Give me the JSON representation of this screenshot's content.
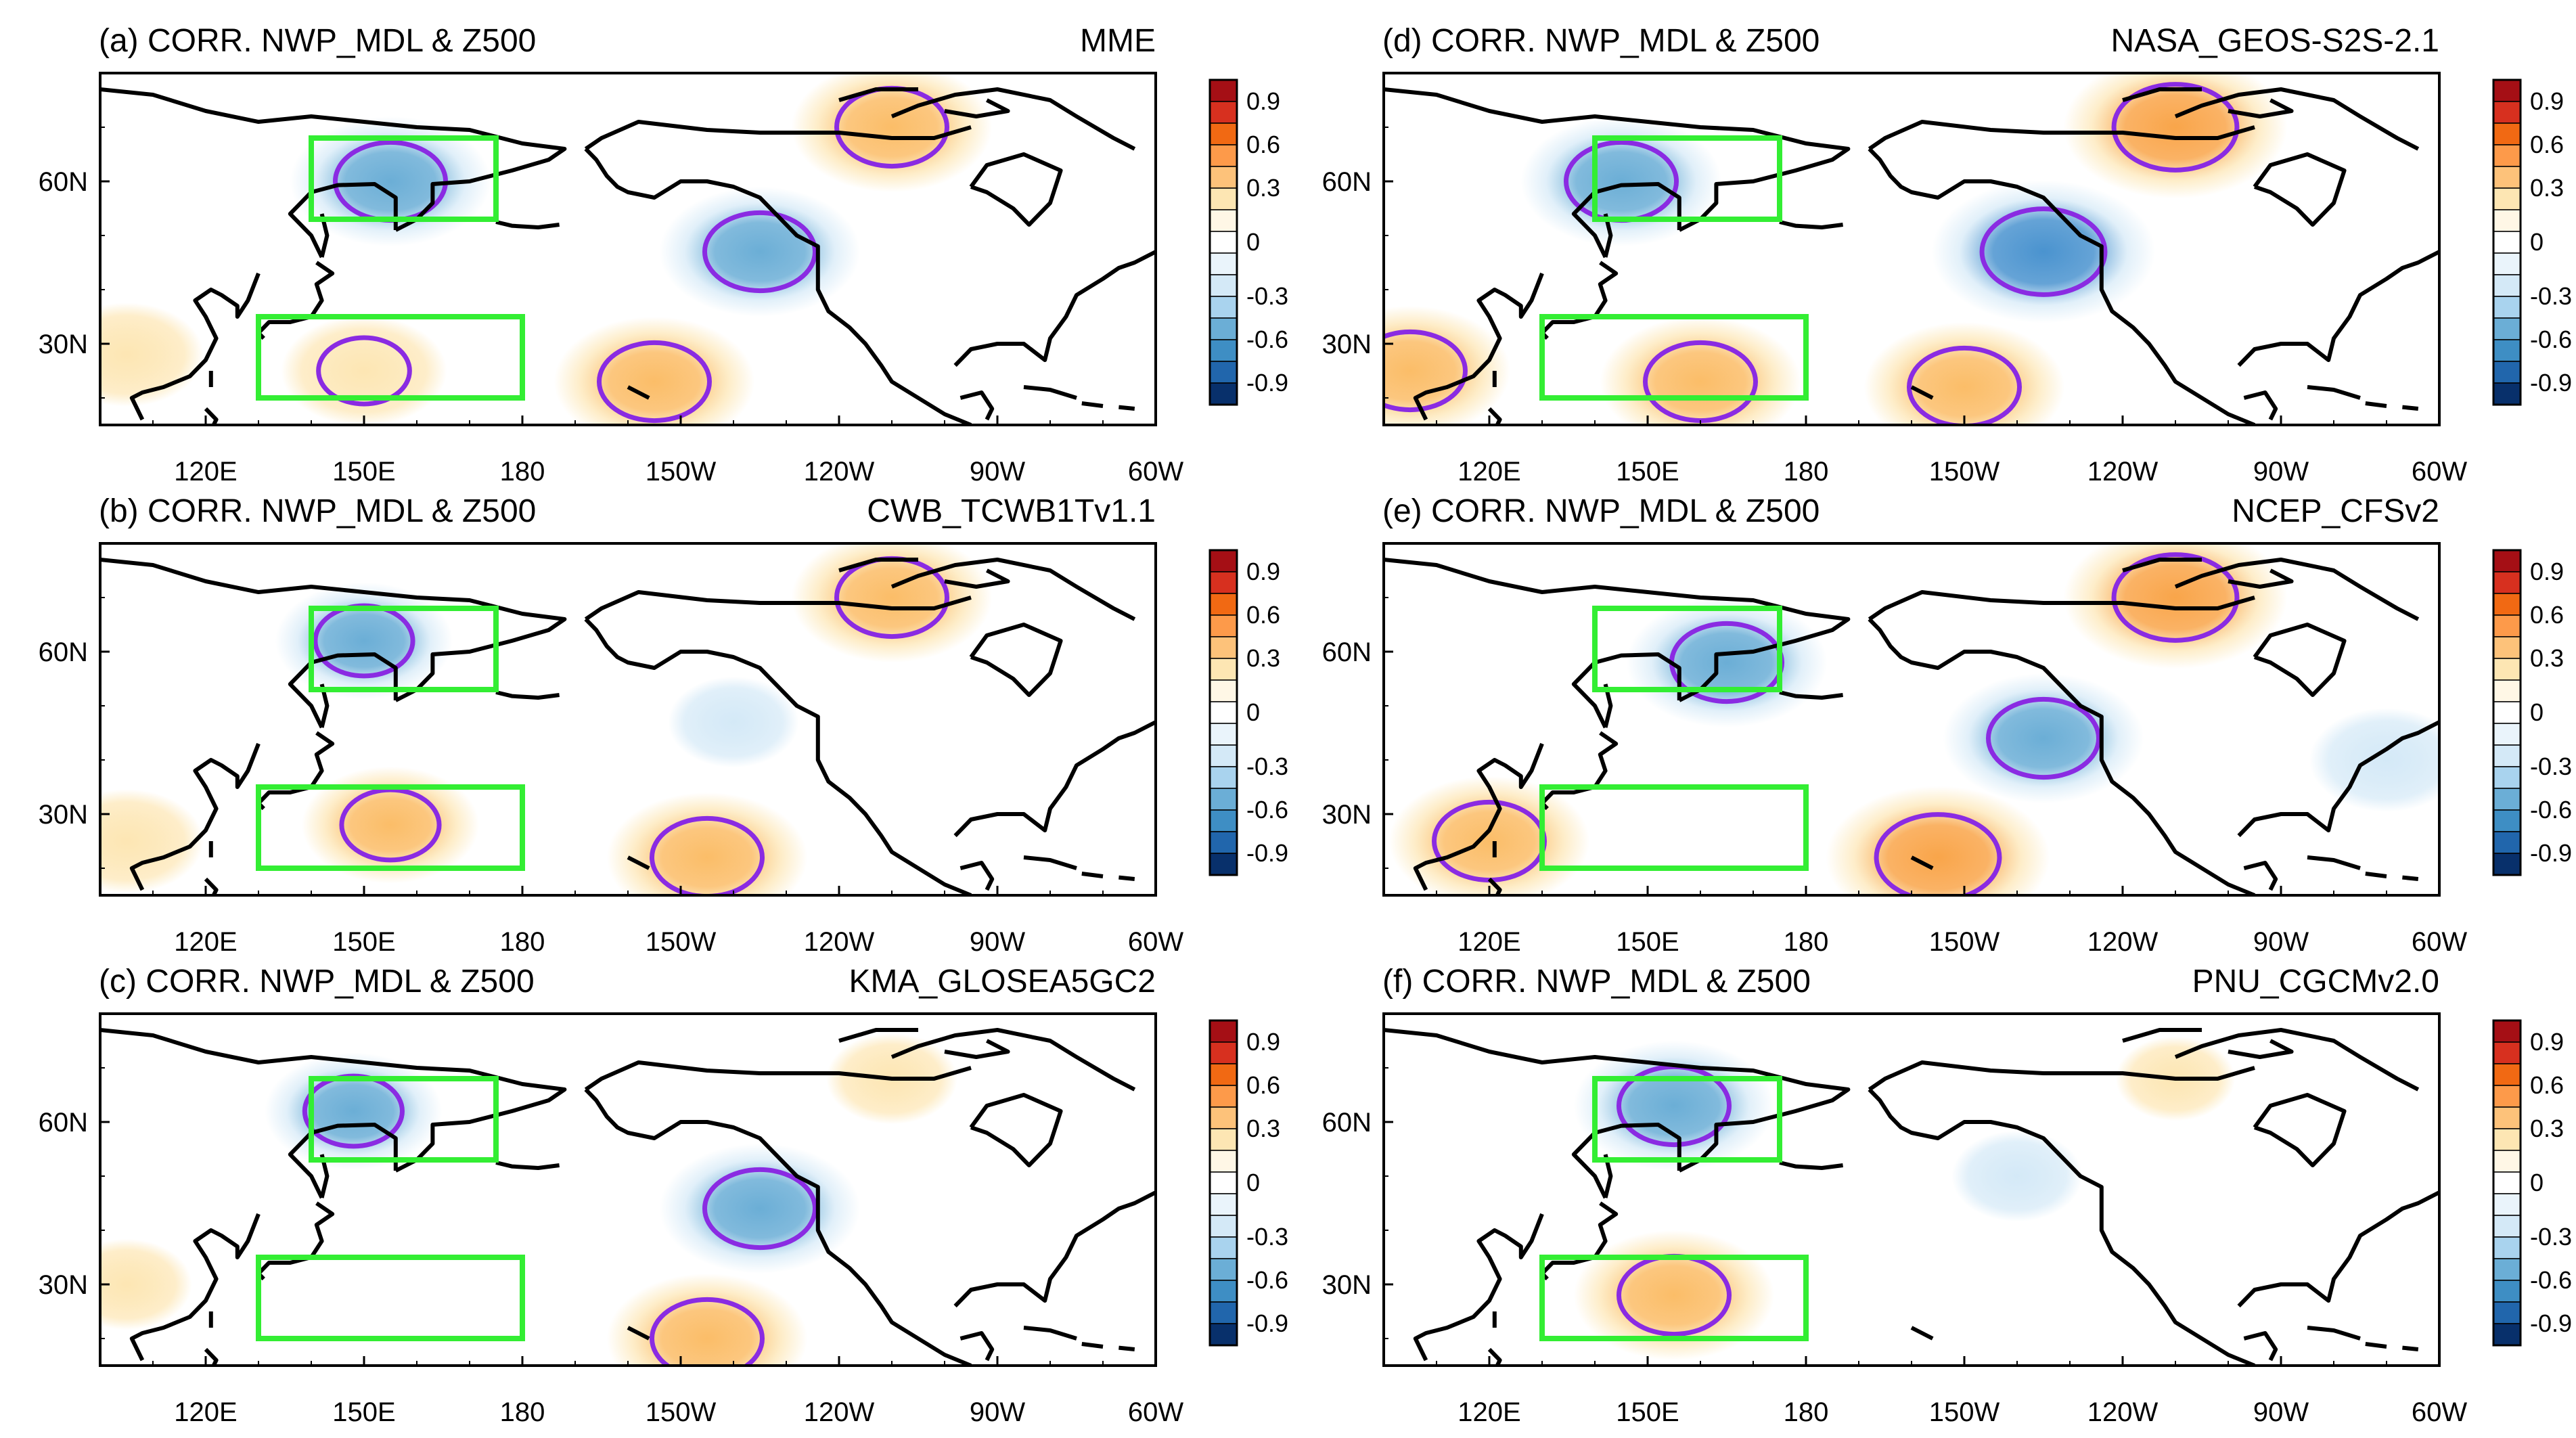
{
  "chart_data": [
    {
      "panel": "a",
      "type": "heatmap",
      "title": "(a) CORR. NWP_MDL & Z500",
      "model": "MME",
      "xticks": [
        "120E",
        "150E",
        "180",
        "150W",
        "120W",
        "90W",
        "60W"
      ],
      "yticks": [
        "30N",
        "60N"
      ],
      "colorbar_ticks": [
        "0.9",
        "0.6",
        "0.3",
        "0",
        "-0.3",
        "-0.6",
        "-0.9"
      ],
      "xlim_lon_east": [
        100,
        300
      ],
      "ylim_lat": [
        15,
        80
      ],
      "boxes": [
        {
          "lon": [
            140,
            175
          ],
          "lat": [
            53,
            68
          ]
        },
        {
          "lon": [
            130,
            180
          ],
          "lat": [
            20,
            35
          ]
        }
      ],
      "field": [
        {
          "lon": 155,
          "lat": 60,
          "value": -0.5
        },
        {
          "lon": 225,
          "lat": 47,
          "value": -0.5
        },
        {
          "lon": 250,
          "lat": 70,
          "value": 0.5
        },
        {
          "lon": 205,
          "lat": 23,
          "value": 0.5
        },
        {
          "lon": 150,
          "lat": 25,
          "value": 0.35
        },
        {
          "lon": 105,
          "lat": 28,
          "value": 0.3
        }
      ]
    },
    {
      "panel": "b",
      "type": "heatmap",
      "title": "(b) CORR. NWP_MDL & Z500",
      "model": "CWB_TCWB1Tv1.1",
      "xticks": [
        "120E",
        "150E",
        "180",
        "150W",
        "120W",
        "90W",
        "60W"
      ],
      "yticks": [
        "30N",
        "60N"
      ],
      "colorbar_ticks": [
        "0.9",
        "0.6",
        "0.3",
        "0",
        "-0.3",
        "-0.6",
        "-0.9"
      ],
      "xlim_lon_east": [
        100,
        300
      ],
      "ylim_lat": [
        15,
        80
      ],
      "boxes": [
        {
          "lon": [
            140,
            175
          ],
          "lat": [
            53,
            68
          ]
        },
        {
          "lon": [
            130,
            180
          ],
          "lat": [
            20,
            35
          ]
        }
      ],
      "field": [
        {
          "lon": 150,
          "lat": 62,
          "value": -0.4
        },
        {
          "lon": 220,
          "lat": 47,
          "value": -0.2
        },
        {
          "lon": 250,
          "lat": 70,
          "value": 0.5
        },
        {
          "lon": 215,
          "lat": 22,
          "value": 0.5
        },
        {
          "lon": 155,
          "lat": 28,
          "value": 0.4
        },
        {
          "lon": 105,
          "lat": 25,
          "value": 0.3
        }
      ]
    },
    {
      "panel": "c",
      "type": "heatmap",
      "title": "(c) CORR. NWP_MDL & Z500",
      "model": "KMA_GLOSEA5GC2",
      "xticks": [
        "120E",
        "150E",
        "180",
        "150W",
        "120W",
        "90W",
        "60W"
      ],
      "yticks": [
        "30N",
        "60N"
      ],
      "colorbar_ticks": [
        "0.9",
        "0.6",
        "0.3",
        "0",
        "-0.3",
        "-0.6",
        "-0.9"
      ],
      "xlim_lon_east": [
        100,
        300
      ],
      "ylim_lat": [
        15,
        80
      ],
      "boxes": [
        {
          "lon": [
            140,
            175
          ],
          "lat": [
            53,
            68
          ]
        },
        {
          "lon": [
            130,
            180
          ],
          "lat": [
            20,
            35
          ]
        }
      ],
      "field": [
        {
          "lon": 148,
          "lat": 62,
          "value": -0.4
        },
        {
          "lon": 225,
          "lat": 44,
          "value": -0.5
        },
        {
          "lon": 215,
          "lat": 20,
          "value": 0.5
        },
        {
          "lon": 250,
          "lat": 68,
          "value": 0.2
        },
        {
          "lon": 105,
          "lat": 30,
          "value": 0.2
        }
      ]
    },
    {
      "panel": "d",
      "type": "heatmap",
      "title": "(d) CORR. NWP_MDL & Z500",
      "model": "NASA_GEOS-S2S-2.1",
      "xticks": [
        "120E",
        "150E",
        "180",
        "150W",
        "120W",
        "90W",
        "60W"
      ],
      "yticks": [
        "30N",
        "60N"
      ],
      "colorbar_ticks": [
        "0.9",
        "0.6",
        "0.3",
        "0",
        "-0.3",
        "-0.6",
        "-0.9"
      ],
      "xlim_lon_east": [
        100,
        300
      ],
      "ylim_lat": [
        15,
        80
      ],
      "boxes": [
        {
          "lon": [
            140,
            175
          ],
          "lat": [
            53,
            68
          ]
        },
        {
          "lon": [
            130,
            180
          ],
          "lat": [
            20,
            35
          ]
        }
      ],
      "field": [
        {
          "lon": 145,
          "lat": 60,
          "value": -0.5
        },
        {
          "lon": 225,
          "lat": 47,
          "value": -0.6
        },
        {
          "lon": 250,
          "lat": 70,
          "value": 0.6
        },
        {
          "lon": 160,
          "lat": 23,
          "value": 0.5
        },
        {
          "lon": 210,
          "lat": 22,
          "value": 0.5
        },
        {
          "lon": 105,
          "lat": 25,
          "value": 0.5
        }
      ]
    },
    {
      "panel": "e",
      "type": "heatmap",
      "title": "(e) CORR. NWP_MDL & Z500",
      "model": "NCEP_CFSv2",
      "xticks": [
        "120E",
        "150E",
        "180",
        "150W",
        "120W",
        "90W",
        "60W"
      ],
      "yticks": [
        "30N",
        "60N"
      ],
      "colorbar_ticks": [
        "0.9",
        "0.6",
        "0.3",
        "0",
        "-0.3",
        "-0.6",
        "-0.9"
      ],
      "xlim_lon_east": [
        100,
        300
      ],
      "ylim_lat": [
        15,
        80
      ],
      "boxes": [
        {
          "lon": [
            140,
            175
          ],
          "lat": [
            53,
            68
          ]
        },
        {
          "lon": [
            130,
            180
          ],
          "lat": [
            20,
            35
          ]
        }
      ],
      "field": [
        {
          "lon": 165,
          "lat": 58,
          "value": -0.5
        },
        {
          "lon": 225,
          "lat": 44,
          "value": -0.5
        },
        {
          "lon": 250,
          "lat": 70,
          "value": 0.6
        },
        {
          "lon": 205,
          "lat": 22,
          "value": 0.6
        },
        {
          "lon": 120,
          "lat": 25,
          "value": 0.5
        },
        {
          "lon": 290,
          "lat": 40,
          "value": -0.3
        }
      ]
    },
    {
      "panel": "f",
      "type": "heatmap",
      "title": "(f) CORR. NWP_MDL & Z500",
      "model": "PNU_CGCMv2.0",
      "xticks": [
        "120E",
        "150E",
        "180",
        "150W",
        "120W",
        "90W",
        "60W"
      ],
      "yticks": [
        "30N",
        "60N"
      ],
      "colorbar_ticks": [
        "0.9",
        "0.6",
        "0.3",
        "0",
        "-0.3",
        "-0.6",
        "-0.9"
      ],
      "xlim_lon_east": [
        100,
        300
      ],
      "ylim_lat": [
        15,
        80
      ],
      "boxes": [
        {
          "lon": [
            140,
            175
          ],
          "lat": [
            53,
            68
          ]
        },
        {
          "lon": [
            130,
            180
          ],
          "lat": [
            20,
            35
          ]
        }
      ],
      "field": [
        {
          "lon": 155,
          "lat": 63,
          "value": -0.5
        },
        {
          "lon": 155,
          "lat": 28,
          "value": 0.5
        },
        {
          "lon": 220,
          "lat": 50,
          "value": -0.2
        },
        {
          "lon": 250,
          "lat": 68,
          "value": 0.15
        }
      ]
    }
  ],
  "colors": {
    "neg_strong": "#2166ac",
    "neg_mid": "#6baed6",
    "neg_light": "#d4e9f7",
    "pos_light": "#fde6b3",
    "pos_mid": "#f9a54a",
    "pos_strong": "#d7301f",
    "box": "#33ee33",
    "contour": "#8a2be2",
    "coast": "#000000"
  }
}
